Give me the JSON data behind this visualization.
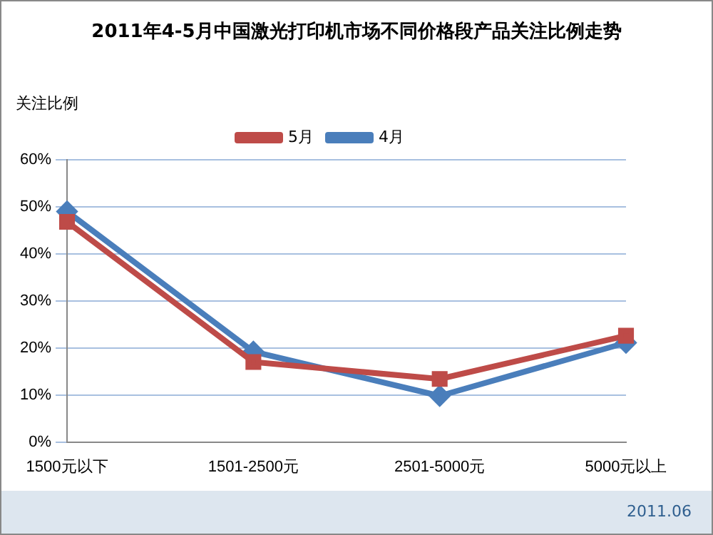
{
  "chart_data": {
    "type": "line",
    "title": "2011年4-5月中国激光打印机市场不同价格段产品关注比例走势",
    "ylabel": "关注比例",
    "categories": [
      "1500元以下",
      "1501-2500元",
      "2501-5000元",
      "5000元以上"
    ],
    "series": [
      {
        "name": "4月",
        "color": "#4a7ebb",
        "marker": "diamond",
        "values": [
          49,
          19.2,
          9.8,
          21.1
        ]
      },
      {
        "name": "5月",
        "color": "#be4b48",
        "marker": "square",
        "values": [
          46.8,
          17,
          13.4,
          22.6
        ]
      }
    ],
    "ylim": [
      0,
      60
    ],
    "yticks": [
      {
        "value": 0,
        "label": "0%"
      },
      {
        "value": 10,
        "label": "10%"
      },
      {
        "value": 20,
        "label": "20%"
      },
      {
        "value": 30,
        "label": "30%"
      },
      {
        "value": 40,
        "label": "40%"
      },
      {
        "value": 50,
        "label": "50%"
      },
      {
        "value": 60,
        "label": "60%"
      }
    ],
    "grid": "y",
    "legend": "top",
    "annotations": [
      "2011.06"
    ]
  }
}
